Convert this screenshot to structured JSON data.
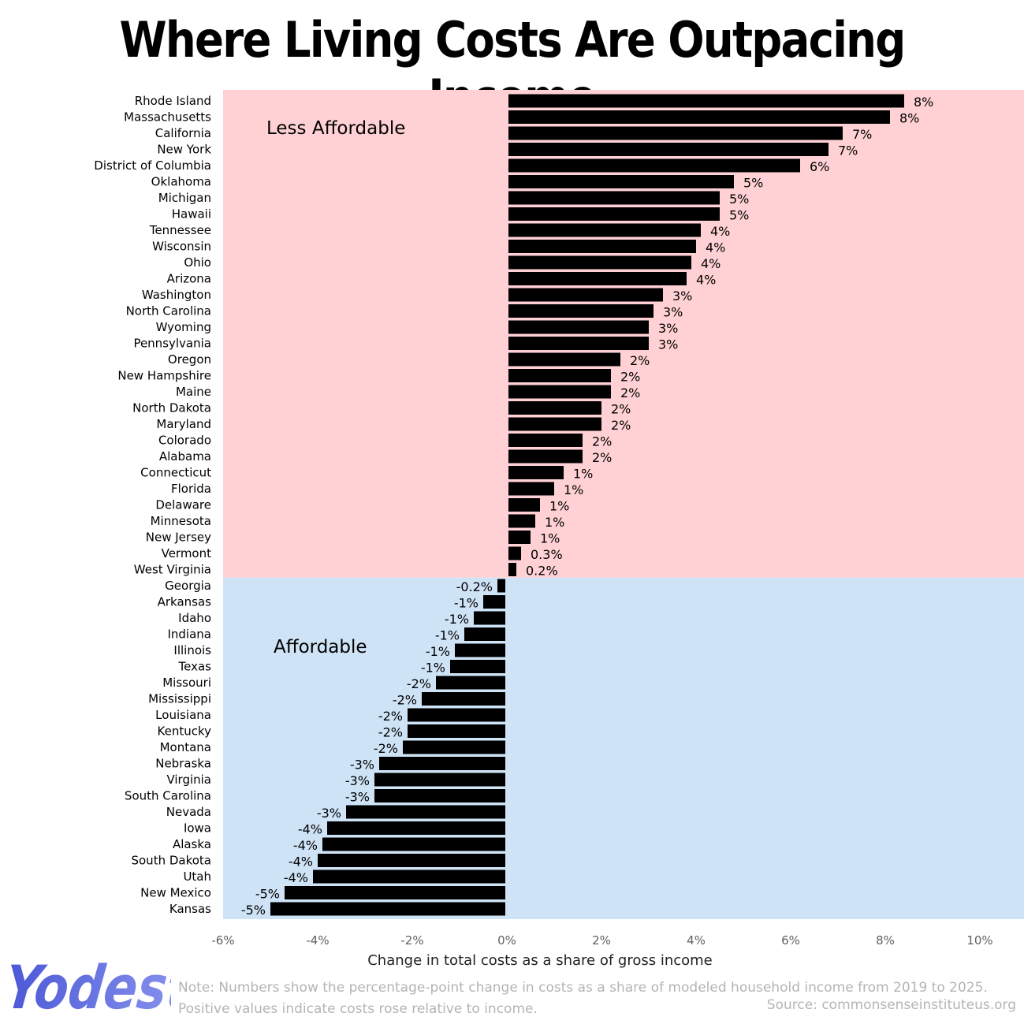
{
  "chart_data": {
    "type": "bar",
    "orientation": "horizontal",
    "title": "Where Living Costs Are Outpacing Income",
    "xlabel": "Change in total costs as a share of gross income",
    "xlim": [
      -6,
      10
    ],
    "x_ticks": [
      "-6%",
      "-4%",
      "-2%",
      "0%",
      "2%",
      "4%",
      "6%",
      "8%",
      "10%"
    ],
    "grid": false,
    "legend": "none",
    "bar_color": "#000000",
    "regions": [
      {
        "name": "Less Affordable",
        "color": "#ffd1d4"
      },
      {
        "name": "Affordable",
        "color": "#cfe3f6"
      }
    ],
    "categories": [
      "Rhode Island",
      "Massachusetts",
      "California",
      "New York",
      "District of Columbia",
      "Oklahoma",
      "Michigan",
      "Hawaii",
      "Tennessee",
      "Wisconsin",
      "Ohio",
      "Arizona",
      "Washington",
      "North Carolina",
      "Wyoming",
      "Pennsylvania",
      "Oregon",
      "New Hampshire",
      "Maine",
      "North Dakota",
      "Maryland",
      "Colorado",
      "Alabama",
      "Connecticut",
      "Florida",
      "Delaware",
      "Minnesota",
      "New Jersey",
      "Vermont",
      "West Virginia",
      "Georgia",
      "Arkansas",
      "Idaho",
      "Indiana",
      "Illinois",
      "Texas",
      "Missouri",
      "Mississippi",
      "Louisiana",
      "Kentucky",
      "Montana",
      "Nebraska",
      "Virginia",
      "South Carolina",
      "Nevada",
      "Iowa",
      "Alaska",
      "South Dakota",
      "Utah",
      "New Mexico",
      "Kansas"
    ],
    "values": [
      8.4,
      8.1,
      7.1,
      6.8,
      6.2,
      4.8,
      4.5,
      4.5,
      4.1,
      4.0,
      3.9,
      3.8,
      3.3,
      3.1,
      3.0,
      3.0,
      2.4,
      2.2,
      2.2,
      2.0,
      2.0,
      1.6,
      1.6,
      1.2,
      1.0,
      0.7,
      0.6,
      0.5,
      0.3,
      0.2,
      -0.2,
      -0.5,
      -0.7,
      -0.9,
      -1.1,
      -1.2,
      -1.5,
      -1.8,
      -2.1,
      -2.1,
      -2.2,
      -2.7,
      -2.8,
      -2.8,
      -3.4,
      -3.8,
      -3.9,
      -4.0,
      -4.1,
      -4.7,
      -5.0
    ],
    "data_labels": [
      "8%",
      "8%",
      "7%",
      "7%",
      "6%",
      "5%",
      "5%",
      "5%",
      "4%",
      "4%",
      "4%",
      "4%",
      "3%",
      "3%",
      "3%",
      "3%",
      "2%",
      "2%",
      "2%",
      "2%",
      "2%",
      "2%",
      "2%",
      "1%",
      "1%",
      "1%",
      "1%",
      "1%",
      "0.3%",
      "0.2%",
      "-0.2%",
      "-1%",
      "-1%",
      "-1%",
      "-1%",
      "-1%",
      "-2%",
      "-2%",
      "-2%",
      "-2%",
      "-2%",
      "-3%",
      "-3%",
      "-3%",
      "-3%",
      "-4%",
      "-4%",
      "-4%",
      "-4%",
      "-5%",
      "-5%"
    ]
  },
  "note": "Note: Numbers show the percentage-point change in costs as a share of modeled household income from 2019 to 2025. Positive values indicate costs rose relative to income.",
  "source": "Source: commonsenseinstituteus.org",
  "logo_text": "Yodest"
}
